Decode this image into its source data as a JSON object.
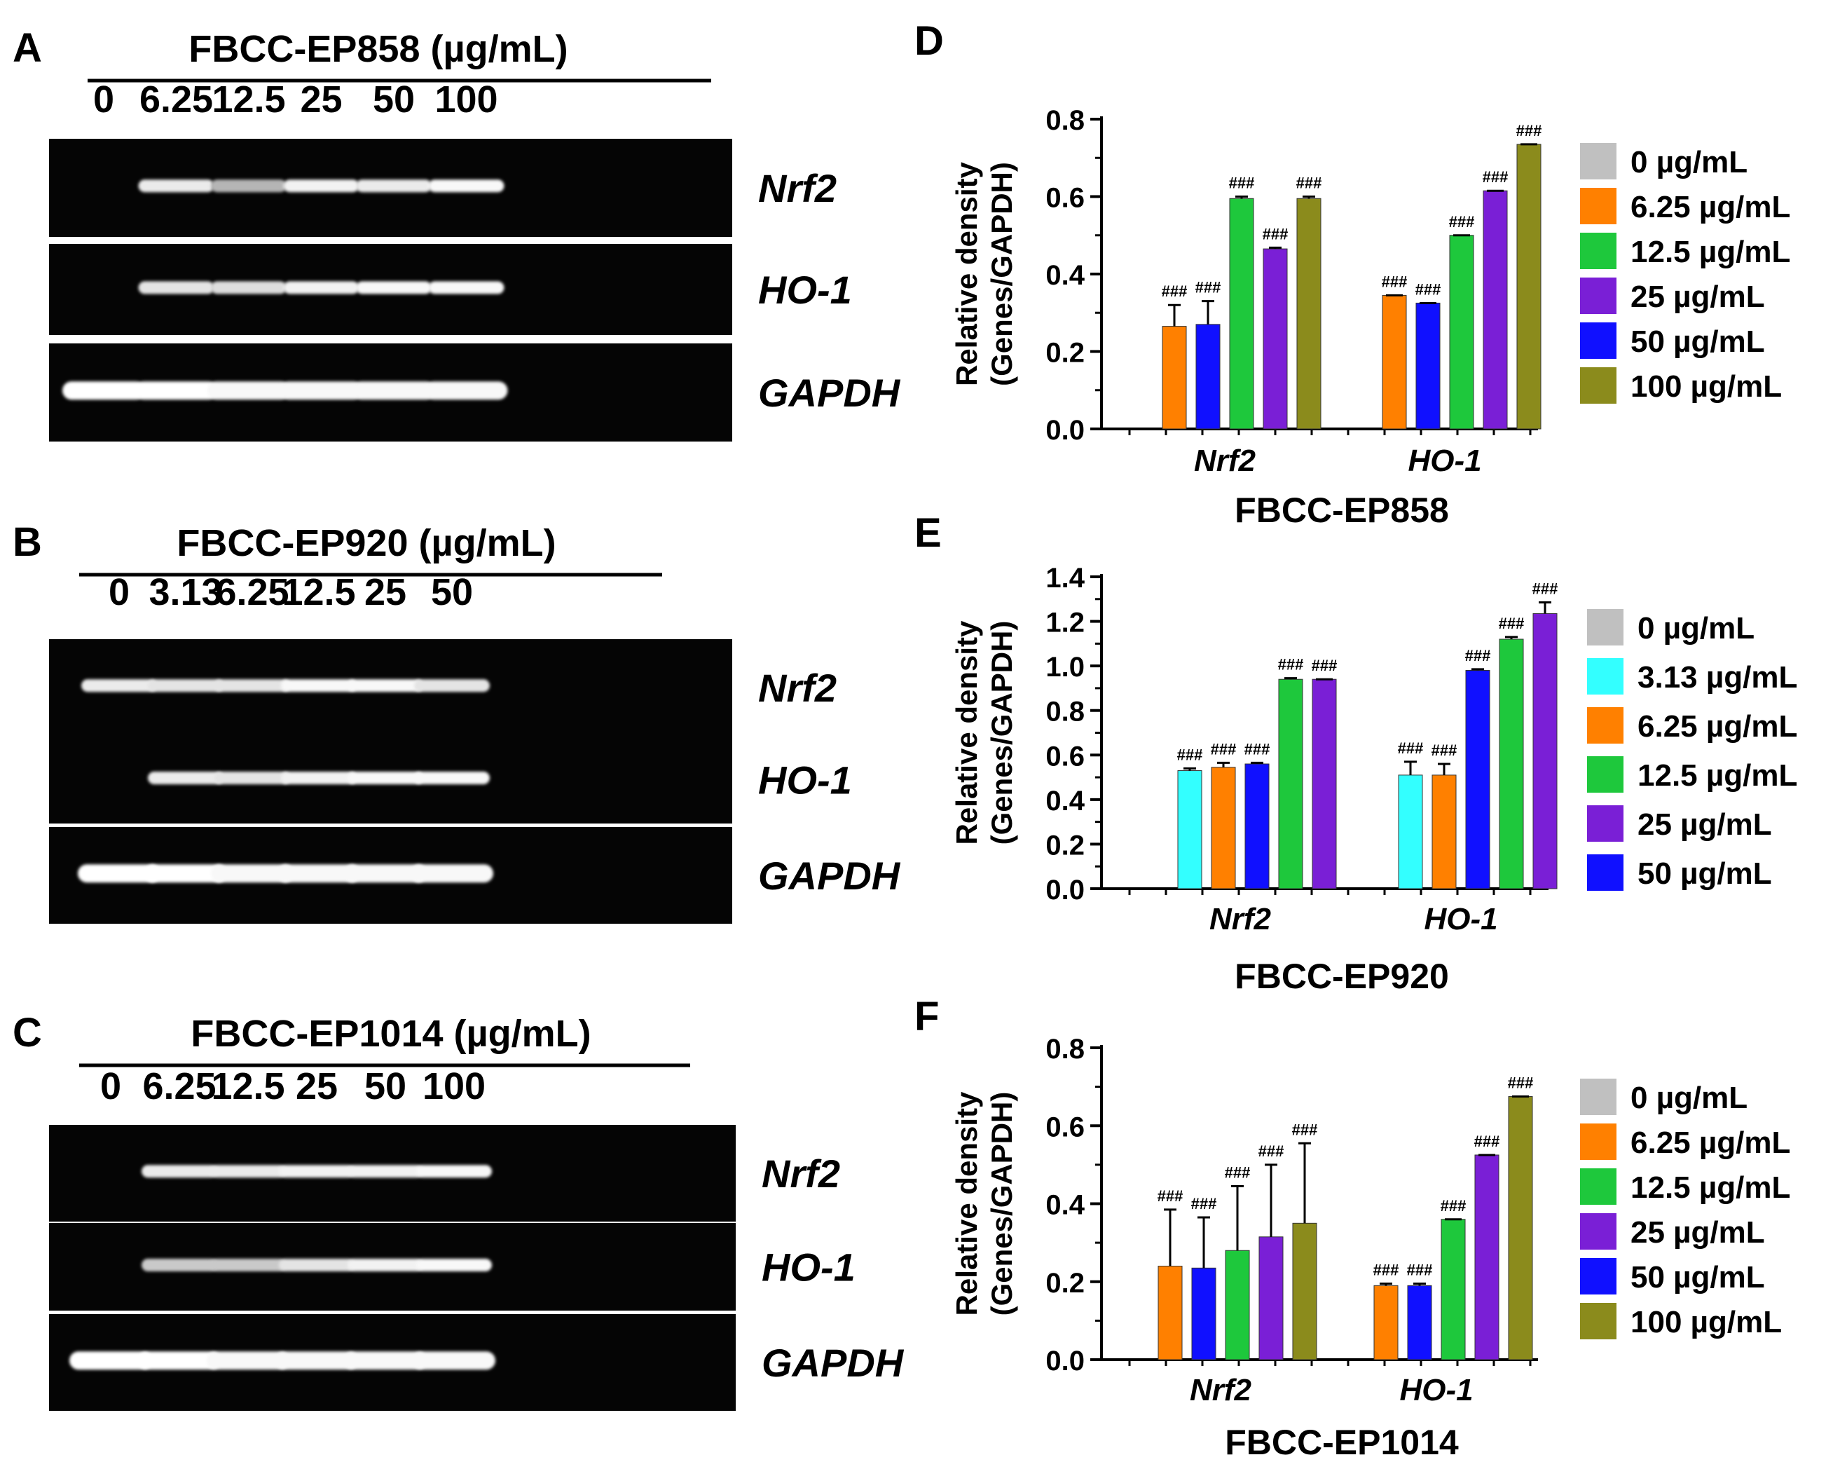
{
  "colors": {
    "gray": "#c0c0c0",
    "cyan": "#33ffff",
    "orange": "#ff8000",
    "green": "#1ec83c",
    "purple": "#7a1fd6",
    "blue": "#1010ff",
    "olive": "#8b8b1c"
  },
  "gels": [
    {
      "letter": "A",
      "title": "FBCC-EP858 (µg/mL)",
      "lanes": [
        "0",
        "6.25",
        "12.5",
        "25",
        "50",
        "100"
      ],
      "rows": [
        {
          "label": "Nrf2",
          "bands": [
            0,
            0.85,
            0.45,
            0.9,
            0.85,
            0.95
          ]
        },
        {
          "label": "HO-1",
          "bands": [
            0,
            0.8,
            0.75,
            0.9,
            0.95,
            0.95
          ]
        },
        {
          "label": "GAPDH",
          "bands": [
            1,
            1,
            0.95,
            0.95,
            0.95,
            0.95
          ]
        }
      ]
    },
    {
      "letter": "B",
      "title": "FBCC-EP920 (µg/mL)",
      "lanes": [
        "0",
        "3.13",
        "6.25",
        "12.5",
        "25",
        "50"
      ],
      "rows": [
        {
          "label": "Nrf2",
          "bands": [
            0.85,
            0.8,
            0.8,
            0.95,
            0.95,
            0.8
          ]
        },
        {
          "label": "HO-1",
          "bands": [
            0,
            0.85,
            0.8,
            0.9,
            0.95,
            0.95
          ]
        },
        {
          "label": "GAPDH",
          "bands": [
            1,
            1,
            0.95,
            0.95,
            0.95,
            0.95
          ]
        }
      ]
    },
    {
      "letter": "C",
      "title": "FBCC-EP1014 (µg/mL)",
      "lanes": [
        "0",
        "6.25",
        "12.5",
        "25",
        "50",
        "100"
      ],
      "rows": [
        {
          "label": "Nrf2",
          "bands": [
            0,
            0.85,
            0.85,
            0.9,
            0.9,
            0.95
          ]
        },
        {
          "label": "HO-1",
          "bands": [
            0,
            0.6,
            0.6,
            0.8,
            0.9,
            0.95
          ]
        },
        {
          "label": "GAPDH",
          "bands": [
            1,
            1,
            0.95,
            0.95,
            0.95,
            0.95
          ]
        }
      ]
    }
  ],
  "chart_data": [
    {
      "panel": "D",
      "type": "bar",
      "title": "FBCC-EP858",
      "ylabel": "Relative density",
      "ylabel2": "(Genes/GAPDH)",
      "categories": [
        "Nrf2",
        "HO-1"
      ],
      "ylim": [
        0,
        0.8
      ],
      "yticks": [
        "0.0",
        "0.2",
        "0.4",
        "0.6",
        "0.8"
      ],
      "ystep": 0.2,
      "series": [
        {
          "name": "0 µg/mL",
          "color": "gray",
          "values": [
            0,
            0
          ],
          "errors": [
            0,
            0
          ],
          "sig": [
            "",
            ""
          ]
        },
        {
          "name": "6.25 µg/mL",
          "color": "orange",
          "values": [
            0.265,
            0.345
          ],
          "errors": [
            0.055,
            0
          ],
          "sig": [
            "###",
            "###"
          ]
        },
        {
          "name": "50 µg/mL",
          "color": "blue",
          "values": [
            0.27,
            0.325
          ],
          "errors": [
            0.06,
            0
          ],
          "sig": [
            "###",
            "###"
          ]
        },
        {
          "name": "12.5 µg/mL",
          "color": "green",
          "values": [
            0.595,
            0.5
          ],
          "errors": [
            0.005,
            0
          ],
          "sig": [
            "###",
            "###"
          ]
        },
        {
          "name": "25 µg/mL",
          "color": "purple",
          "values": [
            0.465,
            0.615
          ],
          "errors": [
            0.003,
            0
          ],
          "sig": [
            "###",
            "###"
          ]
        },
        {
          "name": "100 µg/mL",
          "color": "olive",
          "values": [
            0.595,
            0.735
          ],
          "errors": [
            0.005,
            0
          ],
          "sig": [
            "###",
            "###"
          ]
        }
      ],
      "legend": [
        {
          "name": "0 µg/mL",
          "color": "gray"
        },
        {
          "name": "6.25 µg/mL",
          "color": "orange"
        },
        {
          "name": "12.5 µg/mL",
          "color": "green"
        },
        {
          "name": "25 µg/mL",
          "color": "purple"
        },
        {
          "name": "50 µg/mL",
          "color": "blue"
        },
        {
          "name": "100 µg/mL",
          "color": "olive"
        }
      ]
    },
    {
      "panel": "E",
      "type": "bar",
      "title": "FBCC-EP920",
      "ylabel": "Relative density",
      "ylabel2": "(Genes/GAPDH)",
      "categories": [
        "Nrf2",
        "HO-1"
      ],
      "ylim": [
        0,
        1.4
      ],
      "yticks": [
        "0.0",
        "0.2",
        "0.4",
        "0.6",
        "0.8",
        "1.0",
        "1.2",
        "1.4"
      ],
      "ystep": 0.2,
      "series": [
        {
          "name": "0 µg/mL",
          "color": "gray",
          "values": [
            0,
            0
          ],
          "errors": [
            0,
            0
          ],
          "sig": [
            "",
            ""
          ]
        },
        {
          "name": "3.13 µg/mL",
          "color": "cyan",
          "values": [
            0.53,
            0.51
          ],
          "errors": [
            0.01,
            0.06
          ],
          "sig": [
            "###",
            "###"
          ]
        },
        {
          "name": "6.25 µg/mL",
          "color": "orange",
          "values": [
            0.545,
            0.51
          ],
          "errors": [
            0.02,
            0.05
          ],
          "sig": [
            "###",
            "###"
          ]
        },
        {
          "name": "50 µg/mL",
          "color": "blue",
          "values": [
            0.56,
            0.98
          ],
          "errors": [
            0.005,
            0.005
          ],
          "sig": [
            "###",
            "###"
          ]
        },
        {
          "name": "12.5 µg/mL",
          "color": "green",
          "values": [
            0.94,
            1.12
          ],
          "errors": [
            0.005,
            0.01
          ],
          "sig": [
            "###",
            "###"
          ]
        },
        {
          "name": "25 µg/mL",
          "color": "purple",
          "values": [
            0.94,
            1.235
          ],
          "errors": [
            0,
            0.05
          ],
          "sig": [
            "###",
            "###"
          ]
        }
      ],
      "legend": [
        {
          "name": "0 µg/mL",
          "color": "gray"
        },
        {
          "name": "3.13 µg/mL",
          "color": "cyan"
        },
        {
          "name": "6.25 µg/mL",
          "color": "orange"
        },
        {
          "name": "12.5 µg/mL",
          "color": "green"
        },
        {
          "name": "25 µg/mL",
          "color": "purple"
        },
        {
          "name": "50 µg/mL",
          "color": "blue"
        }
      ]
    },
    {
      "panel": "F",
      "type": "bar",
      "title": "FBCC-EP1014",
      "ylabel": "Relative density",
      "ylabel2": "(Genes/GAPDH)",
      "categories": [
        "Nrf2",
        "HO-1"
      ],
      "ylim": [
        0,
        0.8
      ],
      "yticks": [
        "0.0",
        "0.2",
        "0.4",
        "0.6",
        "0.8"
      ],
      "ystep": 0.2,
      "series": [
        {
          "name": "0 µg/mL",
          "color": "gray",
          "values": [
            0,
            0
          ],
          "errors": [
            0,
            0
          ],
          "sig": [
            "",
            ""
          ]
        },
        {
          "name": "6.25 µg/mL",
          "color": "orange",
          "values": [
            0.24,
            0.19
          ],
          "errors": [
            0.145,
            0.005
          ],
          "sig": [
            "###",
            "###"
          ]
        },
        {
          "name": "50 µg/mL",
          "color": "blue",
          "values": [
            0.235,
            0.19
          ],
          "errors": [
            0.13,
            0.005
          ],
          "sig": [
            "###",
            "###"
          ]
        },
        {
          "name": "12.5 µg/mL",
          "color": "green",
          "values": [
            0.28,
            0.36
          ],
          "errors": [
            0.165,
            0
          ],
          "sig": [
            "###",
            "###"
          ]
        },
        {
          "name": "25 µg/mL",
          "color": "purple",
          "values": [
            0.315,
            0.525
          ],
          "errors": [
            0.185,
            0
          ],
          "sig": [
            "###",
            "###"
          ]
        },
        {
          "name": "100 µg/mL",
          "color": "olive",
          "values": [
            0.35,
            0.675
          ],
          "errors": [
            0.205,
            0
          ],
          "sig": [
            "###",
            "###"
          ]
        }
      ],
      "legend": [
        {
          "name": "0 µg/mL",
          "color": "gray"
        },
        {
          "name": "6.25 µg/mL",
          "color": "orange"
        },
        {
          "name": "12.5 µg/mL",
          "color": "green"
        },
        {
          "name": "25 µg/mL",
          "color": "purple"
        },
        {
          "name": "50 µg/mL",
          "color": "blue"
        },
        {
          "name": "100 µg/mL",
          "color": "olive"
        }
      ]
    }
  ]
}
